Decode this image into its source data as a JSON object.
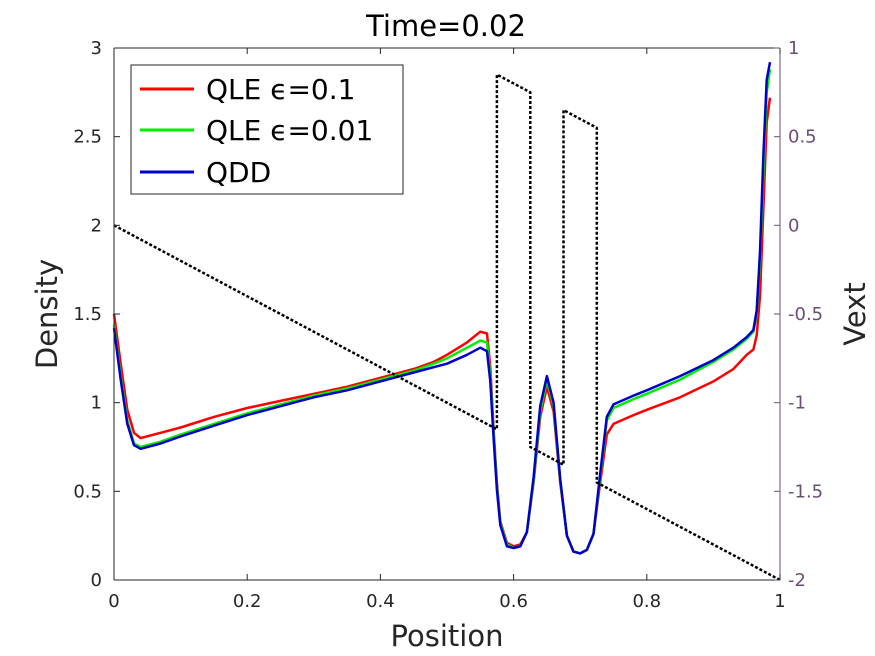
{
  "chart_data": {
    "type": "line",
    "title": "Time=0.02",
    "xlabel": "Position",
    "ylabel": "Density",
    "ylabel_right": "Vext",
    "xlim": [
      0,
      1
    ],
    "ylim": [
      0,
      3
    ],
    "ylim_right": [
      -2,
      1
    ],
    "xticks": [
      "0",
      "0.2",
      "0.4",
      "0.6",
      "0.8",
      "1"
    ],
    "yticks": [
      "0",
      "0.5",
      "1",
      "1.5",
      "2",
      "2.5",
      "3"
    ],
    "yticks_right": [
      "-2",
      "-1.5",
      "-1",
      "-0.5",
      "0",
      "0.5",
      "1"
    ],
    "legend_position": "top-left",
    "colors": {
      "qle_01": "#ff0000",
      "qle_001": "#00ee00",
      "qdd": "#0000cc",
      "vext": "#000000",
      "right_axis": "#6b4d7a",
      "axis": "#262626"
    },
    "series": [
      {
        "name": "QLE ϵ=0.1",
        "legend_label": "QLE ϵ=0.1",
        "color": "#ff0000",
        "axis": "left",
        "points": [
          [
            0,
            1.5
          ],
          [
            0.01,
            1.22
          ],
          [
            0.02,
            0.96
          ],
          [
            0.03,
            0.83
          ],
          [
            0.04,
            0.8
          ],
          [
            0.07,
            0.83
          ],
          [
            0.1,
            0.86
          ],
          [
            0.15,
            0.92
          ],
          [
            0.2,
            0.97
          ],
          [
            0.25,
            1.01
          ],
          [
            0.3,
            1.05
          ],
          [
            0.35,
            1.09
          ],
          [
            0.4,
            1.14
          ],
          [
            0.45,
            1.19
          ],
          [
            0.48,
            1.23
          ],
          [
            0.5,
            1.27
          ],
          [
            0.53,
            1.34
          ],
          [
            0.55,
            1.4
          ],
          [
            0.56,
            1.39
          ],
          [
            0.565,
            1.2
          ],
          [
            0.57,
            0.85
          ],
          [
            0.575,
            0.55
          ],
          [
            0.58,
            0.33
          ],
          [
            0.59,
            0.21
          ],
          [
            0.6,
            0.19
          ],
          [
            0.61,
            0.2
          ],
          [
            0.62,
            0.27
          ],
          [
            0.63,
            0.55
          ],
          [
            0.64,
            0.92
          ],
          [
            0.65,
            1.09
          ],
          [
            0.66,
            0.95
          ],
          [
            0.67,
            0.55
          ],
          [
            0.68,
            0.25
          ],
          [
            0.69,
            0.16
          ],
          [
            0.7,
            0.15
          ],
          [
            0.71,
            0.17
          ],
          [
            0.72,
            0.26
          ],
          [
            0.73,
            0.55
          ],
          [
            0.74,
            0.82
          ],
          [
            0.75,
            0.88
          ],
          [
            0.78,
            0.93
          ],
          [
            0.8,
            0.96
          ],
          [
            0.85,
            1.03
          ],
          [
            0.9,
            1.12
          ],
          [
            0.93,
            1.19
          ],
          [
            0.95,
            1.27
          ],
          [
            0.96,
            1.3
          ],
          [
            0.965,
            1.38
          ],
          [
            0.97,
            1.6
          ],
          [
            0.975,
            2.1
          ],
          [
            0.98,
            2.58
          ],
          [
            0.985,
            2.72
          ]
        ]
      },
      {
        "name": "QLE ϵ=0.01",
        "legend_label": "QLE ϵ=0.01",
        "color": "#00ee00",
        "axis": "left",
        "points": [
          [
            0,
            1.44
          ],
          [
            0.01,
            1.15
          ],
          [
            0.02,
            0.9
          ],
          [
            0.03,
            0.77
          ],
          [
            0.04,
            0.75
          ],
          [
            0.07,
            0.78
          ],
          [
            0.1,
            0.82
          ],
          [
            0.15,
            0.88
          ],
          [
            0.2,
            0.94
          ],
          [
            0.25,
            0.99
          ],
          [
            0.3,
            1.04
          ],
          [
            0.35,
            1.08
          ],
          [
            0.4,
            1.13
          ],
          [
            0.45,
            1.18
          ],
          [
            0.48,
            1.22
          ],
          [
            0.5,
            1.25
          ],
          [
            0.53,
            1.31
          ],
          [
            0.55,
            1.35
          ],
          [
            0.56,
            1.34
          ],
          [
            0.565,
            1.15
          ],
          [
            0.57,
            0.83
          ],
          [
            0.575,
            0.53
          ],
          [
            0.58,
            0.32
          ],
          [
            0.59,
            0.2
          ],
          [
            0.6,
            0.18
          ],
          [
            0.61,
            0.19
          ],
          [
            0.62,
            0.27
          ],
          [
            0.63,
            0.56
          ],
          [
            0.64,
            0.95
          ],
          [
            0.65,
            1.13
          ],
          [
            0.66,
            0.98
          ],
          [
            0.67,
            0.56
          ],
          [
            0.68,
            0.25
          ],
          [
            0.69,
            0.16
          ],
          [
            0.7,
            0.15
          ],
          [
            0.71,
            0.17
          ],
          [
            0.72,
            0.26
          ],
          [
            0.73,
            0.58
          ],
          [
            0.74,
            0.9
          ],
          [
            0.75,
            0.97
          ],
          [
            0.78,
            1.02
          ],
          [
            0.8,
            1.05
          ],
          [
            0.85,
            1.13
          ],
          [
            0.9,
            1.23
          ],
          [
            0.93,
            1.3
          ],
          [
            0.95,
            1.36
          ],
          [
            0.96,
            1.4
          ],
          [
            0.965,
            1.5
          ],
          [
            0.97,
            1.8
          ],
          [
            0.975,
            2.3
          ],
          [
            0.98,
            2.75
          ],
          [
            0.985,
            2.88
          ]
        ]
      },
      {
        "name": "QDD",
        "legend_label": "QDD",
        "color": "#0000cc",
        "axis": "left",
        "points": [
          [
            0,
            1.42
          ],
          [
            0.01,
            1.13
          ],
          [
            0.02,
            0.88
          ],
          [
            0.03,
            0.76
          ],
          [
            0.04,
            0.74
          ],
          [
            0.07,
            0.77
          ],
          [
            0.1,
            0.81
          ],
          [
            0.15,
            0.87
          ],
          [
            0.2,
            0.93
          ],
          [
            0.25,
            0.98
          ],
          [
            0.3,
            1.03
          ],
          [
            0.35,
            1.07
          ],
          [
            0.4,
            1.12
          ],
          [
            0.45,
            1.17
          ],
          [
            0.48,
            1.2
          ],
          [
            0.5,
            1.22
          ],
          [
            0.53,
            1.27
          ],
          [
            0.55,
            1.31
          ],
          [
            0.56,
            1.29
          ],
          [
            0.565,
            1.12
          ],
          [
            0.57,
            0.8
          ],
          [
            0.575,
            0.51
          ],
          [
            0.58,
            0.31
          ],
          [
            0.59,
            0.19
          ],
          [
            0.6,
            0.18
          ],
          [
            0.61,
            0.19
          ],
          [
            0.62,
            0.27
          ],
          [
            0.63,
            0.58
          ],
          [
            0.64,
            0.98
          ],
          [
            0.65,
            1.15
          ],
          [
            0.66,
            1.0
          ],
          [
            0.67,
            0.57
          ],
          [
            0.68,
            0.25
          ],
          [
            0.69,
            0.16
          ],
          [
            0.7,
            0.15
          ],
          [
            0.71,
            0.17
          ],
          [
            0.72,
            0.26
          ],
          [
            0.73,
            0.6
          ],
          [
            0.74,
            0.92
          ],
          [
            0.75,
            0.99
          ],
          [
            0.78,
            1.04
          ],
          [
            0.8,
            1.07
          ],
          [
            0.85,
            1.15
          ],
          [
            0.9,
            1.24
          ],
          [
            0.93,
            1.31
          ],
          [
            0.95,
            1.37
          ],
          [
            0.96,
            1.41
          ],
          [
            0.965,
            1.52
          ],
          [
            0.97,
            1.85
          ],
          [
            0.975,
            2.4
          ],
          [
            0.98,
            2.82
          ],
          [
            0.985,
            2.92
          ]
        ]
      },
      {
        "name": "Vext",
        "color": "#000000",
        "axis": "right",
        "dashed": true,
        "points": [
          [
            0,
            0
          ],
          [
            0.575,
            -1.15
          ],
          [
            0.575,
            0.85
          ],
          [
            0.625,
            0.75
          ],
          [
            0.625,
            -1.25
          ],
          [
            0.675,
            -1.35
          ],
          [
            0.675,
            0.65
          ],
          [
            0.725,
            0.55
          ],
          [
            0.725,
            -1.45
          ],
          [
            1.0,
            -2.0
          ]
        ]
      }
    ]
  }
}
